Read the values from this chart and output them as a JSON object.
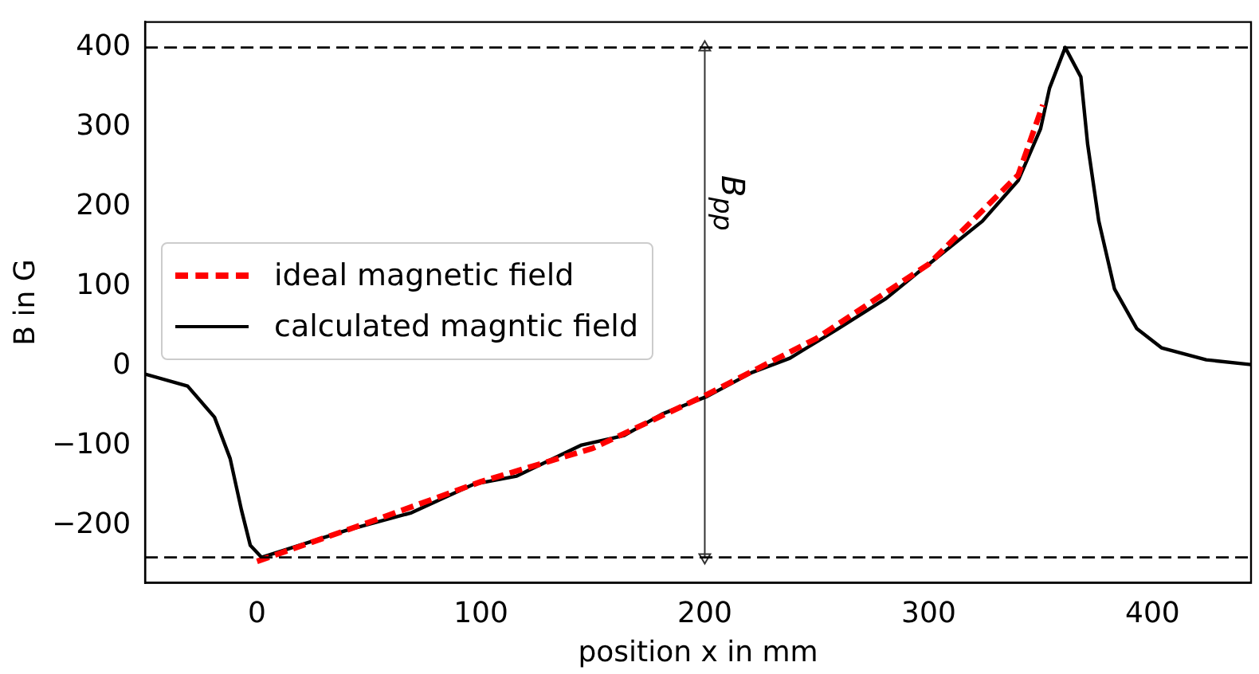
{
  "chart_data": {
    "type": "line",
    "xlabel": "position x in mm",
    "ylabel": "B in G",
    "xlim": [
      -50,
      444
    ],
    "xticks": [
      0,
      100,
      200,
      300,
      400
    ],
    "ylim": [
      -272,
      432
    ],
    "yticks": [
      -200,
      -100,
      0,
      100,
      200,
      300,
      400
    ],
    "grid": false,
    "legend": "left",
    "marker": "none",
    "series": [
      {
        "name": "ideal magnetic field",
        "color": "#ff0000",
        "line_style": "dashed",
        "x": [
          0,
          50,
          100,
          150,
          200,
          250,
          300,
          340,
          351
        ],
        "values": [
          -245,
          -196,
          -145,
          -103,
          -37,
          35,
          128,
          240,
          328
        ]
      },
      {
        "name": "calculated magntic field",
        "color": "#000000",
        "line_style": "solid",
        "x": [
          -50,
          -31,
          -19,
          -12,
          -7,
          -3,
          2,
          40,
          69,
          97,
          116,
          145,
          164,
          181,
          201,
          221,
          238,
          259,
          281,
          295,
          301,
          324,
          340,
          350,
          354,
          361,
          368,
          371,
          376,
          383,
          393,
          404,
          424,
          444
        ],
        "values": [
          -10,
          -25,
          -64,
          -116,
          -180,
          -225,
          -240,
          -206,
          -184,
          -148,
          -138,
          -99,
          -87,
          -60,
          -38,
          -8,
          10,
          46,
          85,
          117,
          130,
          182,
          233,
          298,
          349,
          400,
          363,
          279,
          182,
          97,
          47,
          23,
          8,
          2
        ]
      },
      {
        "type": "line",
        "color": "#333333",
        "line_style": "solid",
        "marker": "triangle",
        "x": [
          200,
          200
        ],
        "values": [
          400,
          -240
        ]
      }
    ],
    "ref_lines": [
      {
        "axis": "y",
        "value": 400,
        "color": "#000000",
        "line_style": "dashed"
      },
      {
        "axis": "y",
        "value": -240,
        "color": "#000000",
        "line_style": "dashed"
      }
    ],
    "annotations": [
      "B$_{pp}$"
    ]
  }
}
